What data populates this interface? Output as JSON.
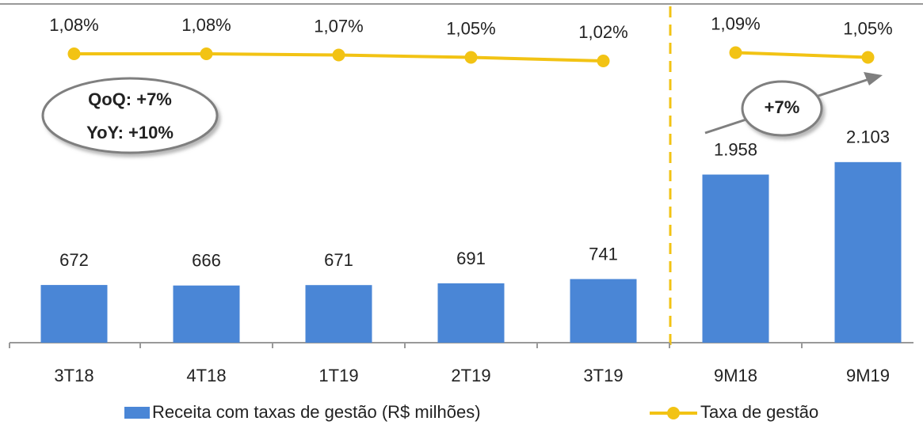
{
  "chart_data": {
    "type": "combo",
    "categories": [
      "3T18",
      "4T18",
      "1T19",
      "2T19",
      "3T19",
      "9M18",
      "9M19"
    ],
    "series": [
      {
        "name": "Receita com taxas de gestão (R$ milhões)",
        "type": "bar",
        "color": "#4a86d6",
        "values": [
          672,
          666,
          671,
          691,
          741,
          1958,
          2103
        ],
        "value_labels": [
          "672",
          "666",
          "671",
          "691",
          "741",
          "1.958",
          "2.103"
        ]
      },
      {
        "name": "Taxa de gestão",
        "type": "line",
        "color": "#f2c314",
        "values": [
          1.08,
          1.08,
          1.07,
          1.05,
          1.02,
          1.09,
          1.05
        ],
        "value_labels": [
          "1,08%",
          "1,08%",
          "1,07%",
          "1,05%",
          "1,02%",
          "1,09%",
          "1,05%"
        ]
      }
    ],
    "annotations": [
      "QoQ: +7%",
      "YoY: +10%",
      "+7%"
    ]
  }
}
